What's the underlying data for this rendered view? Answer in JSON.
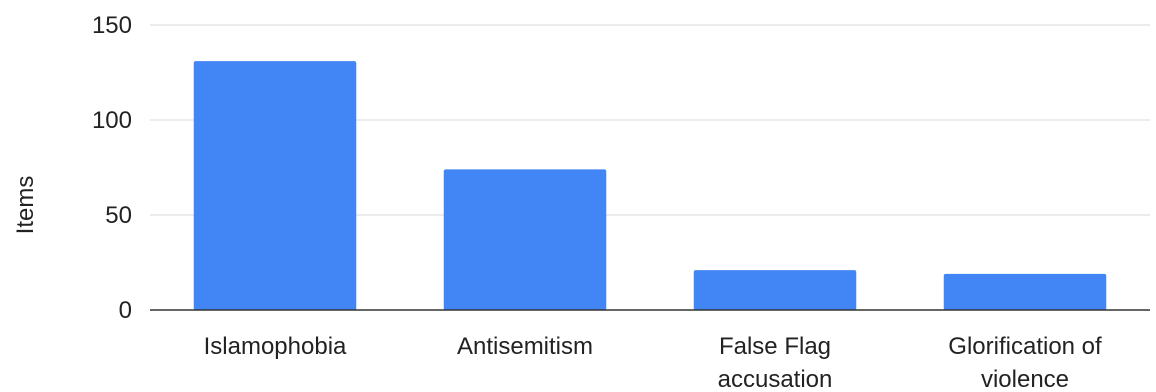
{
  "chart_data": {
    "type": "bar",
    "title": "",
    "xlabel": "",
    "ylabel": "Items",
    "categories": [
      [
        "Islamophobia"
      ],
      [
        "Antisemitism"
      ],
      [
        "False Flag",
        "accusation"
      ],
      [
        "Glorification of",
        "violence"
      ]
    ],
    "values": [
      131,
      74,
      21,
      19
    ],
    "ylim": [
      0,
      150
    ],
    "yticks": [
      "0",
      "50",
      "100",
      "150"
    ],
    "grid": true,
    "legend": "none",
    "bar_color": "#4285f4",
    "grid_color": "#d9d9d9",
    "axis_color": "#333333"
  }
}
